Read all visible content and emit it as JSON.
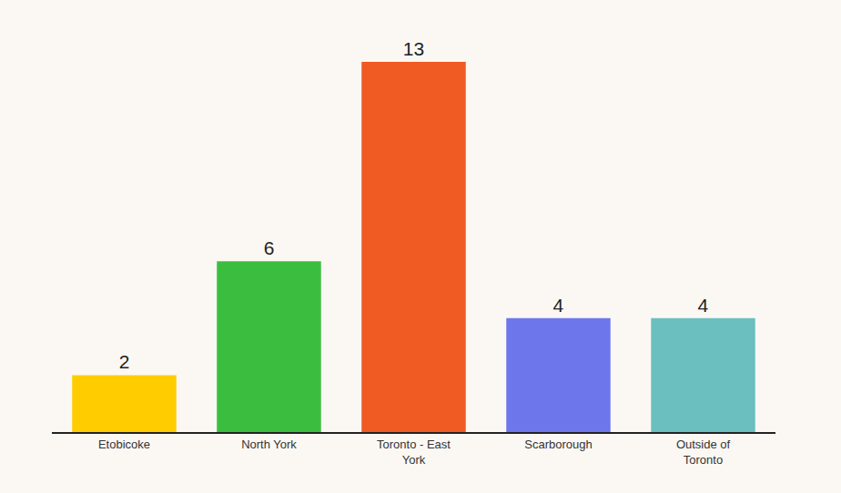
{
  "chart_data": {
    "type": "bar",
    "categories": [
      "Etobicoke",
      "North York",
      "Toronto - East York",
      "Scarborough",
      "Outside of Toronto"
    ],
    "values": [
      2,
      6,
      13,
      4,
      4
    ],
    "colors": [
      "#ffcc00",
      "#3bbe3f",
      "#f05a23",
      "#6e76ec",
      "#6bbfbf"
    ],
    "ylim": [
      0,
      13
    ],
    "data_labels": true,
    "tick_labels": "x",
    "grid": false
  }
}
